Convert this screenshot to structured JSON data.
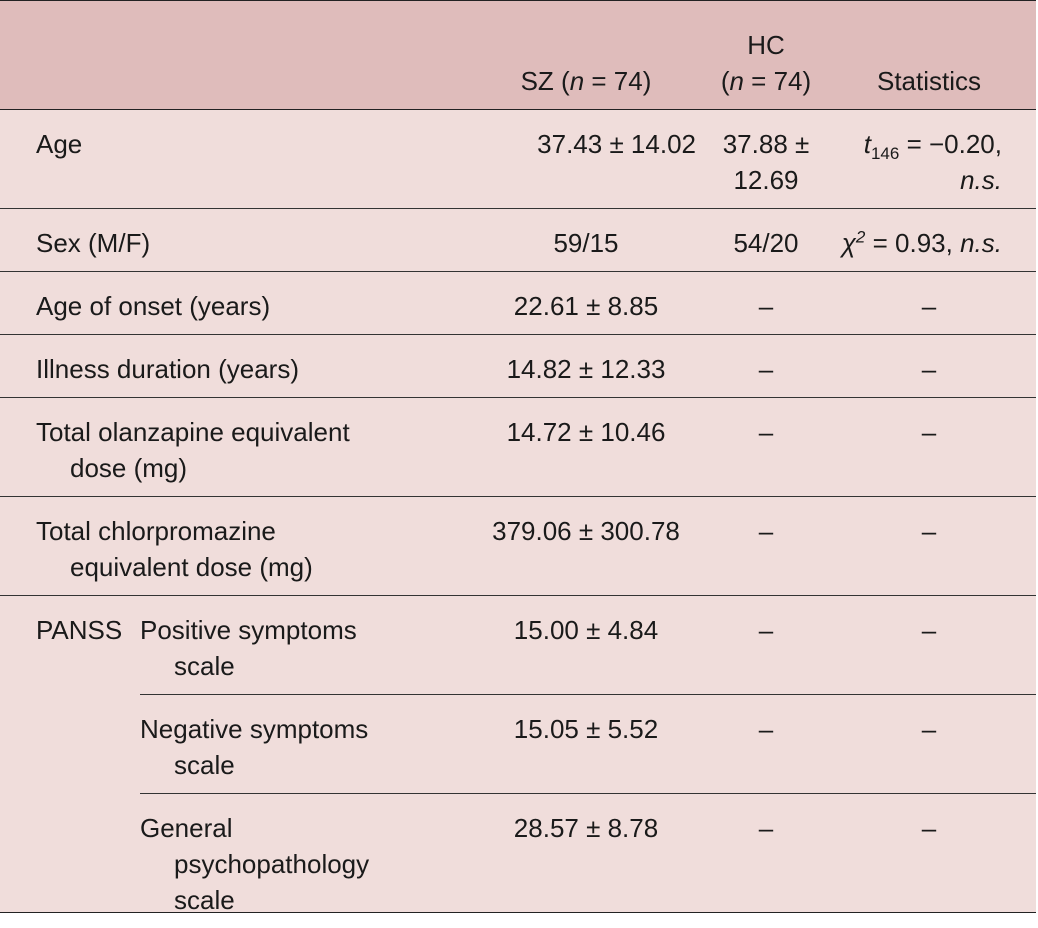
{
  "header": {
    "sz_label": "SZ (",
    "sz_n": "n",
    "sz_eq": " = 74)",
    "hc_label": "HC",
    "hc_open": "(",
    "hc_n": "n",
    "hc_eq": " = 74)",
    "stats_label": "Statistics"
  },
  "rows": {
    "age": {
      "label": "Age",
      "sz": "37.43 ± 14.02",
      "hc_line1": "37.88 ±",
      "hc_line2": "12.69",
      "stat_t": "t",
      "stat_sub": "146",
      "stat_rest": " = −0.20,",
      "stat_ns": "n.s."
    },
    "sex": {
      "label": "Sex (M/F)",
      "sz": "59/15",
      "hc": "54/20",
      "stat_chi": "χ",
      "stat_sup": "2",
      "stat_rest": " = 0.93, ",
      "stat_ns": "n.s."
    },
    "onset": {
      "label": "Age of onset (years)",
      "sz": "22.61 ± 8.85",
      "hc": "–",
      "stat": "–"
    },
    "duration": {
      "label": "Illness duration (years)",
      "sz": "14.82 ± 12.33",
      "hc": "–",
      "stat": "–"
    },
    "olanzapine": {
      "label_line1": "Total olanzapine equivalent",
      "label_line2": "dose (mg)",
      "sz": "14.72 ± 10.46",
      "hc": "–",
      "stat": "–"
    },
    "chlorpromazine": {
      "label_line1": "Total chlorpromazine",
      "label_line2": "equivalent dose (mg)",
      "sz": "379.06 ± 300.78",
      "hc": "–",
      "stat": "–"
    },
    "panss": {
      "label": "PANSS",
      "positive": {
        "line1": "Positive symptoms",
        "line2": "scale",
        "sz": "15.00 ± 4.84",
        "hc": "–",
        "stat": "–"
      },
      "negative": {
        "line1": "Negative symptoms",
        "line2": "scale",
        "sz": "15.05 ± 5.52",
        "hc": "–",
        "stat": "–"
      },
      "general": {
        "line1": "General",
        "line2": "psychopathology",
        "line3": "scale",
        "sz": "28.57 ± 8.78",
        "hc": "–",
        "stat": "–"
      }
    }
  }
}
